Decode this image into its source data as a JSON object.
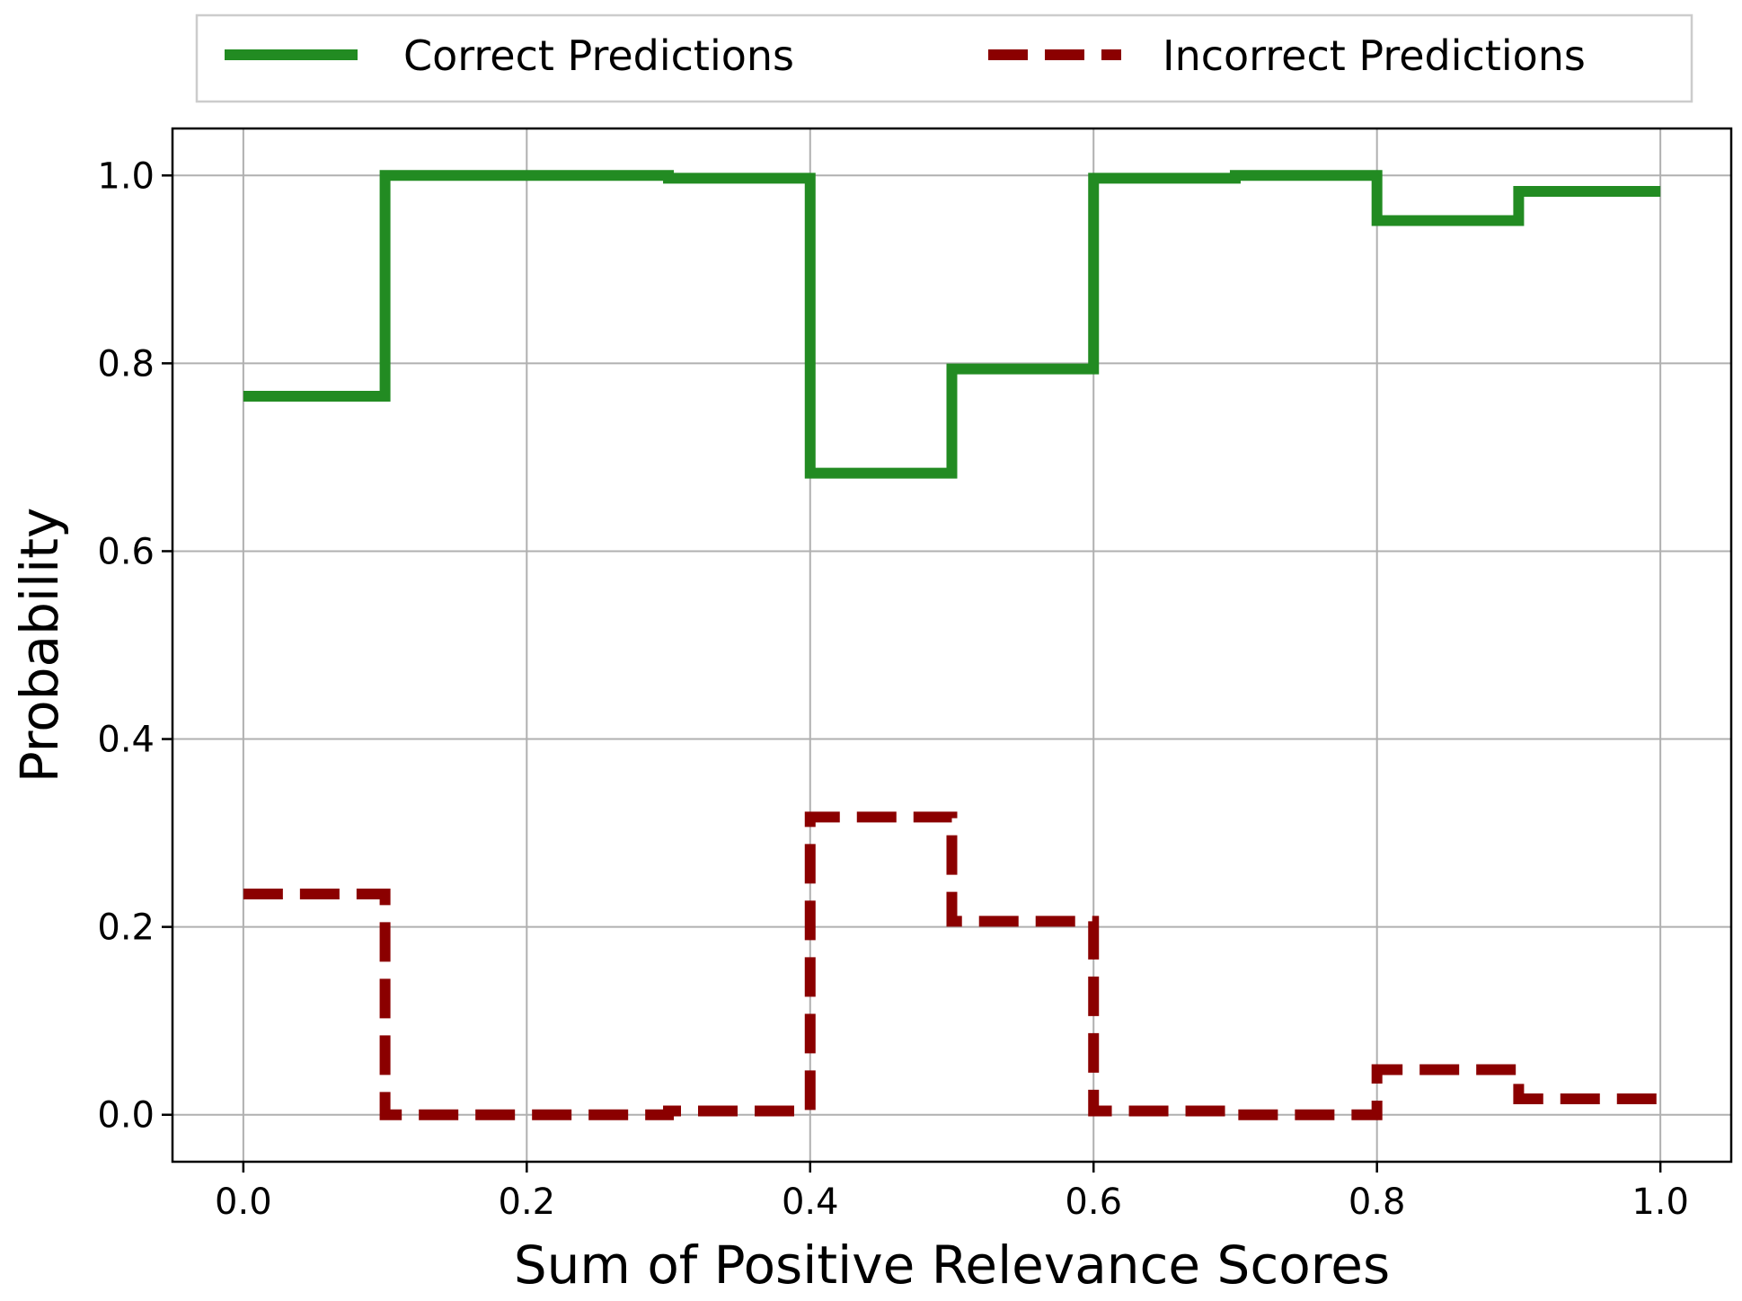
{
  "chart_data": {
    "type": "line",
    "step": "post",
    "xlabel": "Sum of Positive Relevance Scores",
    "ylabel": "Probability",
    "xlim": [
      -0.05,
      1.05
    ],
    "ylim": [
      -0.05,
      1.05
    ],
    "xticks": [
      0.0,
      0.2,
      0.4,
      0.6,
      0.8,
      1.0
    ],
    "yticks": [
      0.0,
      0.2,
      0.4,
      0.6,
      0.8,
      1.0
    ],
    "xtick_labels": [
      "0.0",
      "0.2",
      "0.4",
      "0.6",
      "0.8",
      "1.0"
    ],
    "ytick_labels": [
      "0.0",
      "0.2",
      "0.4",
      "0.6",
      "0.8",
      "1.0"
    ],
    "grid": true,
    "legend_position": "top-center, above plot",
    "x": [
      0.0,
      0.1,
      0.2,
      0.3,
      0.4,
      0.5,
      0.6,
      0.7,
      0.8,
      0.9,
      1.0
    ],
    "series": [
      {
        "name": "Correct Predictions",
        "color": "#228b22",
        "style": "solid",
        "values": [
          0.765,
          1.0,
          1.0,
          0.997,
          0.683,
          0.794,
          0.997,
          1.0,
          0.952,
          0.983,
          0.983
        ]
      },
      {
        "name": "Incorrect Predictions",
        "color": "#8b0000",
        "style": "dashed",
        "values": [
          0.235,
          0.0,
          0.0,
          0.004,
          0.317,
          0.206,
          0.004,
          0.0,
          0.048,
          0.017,
          0.017
        ]
      }
    ]
  }
}
